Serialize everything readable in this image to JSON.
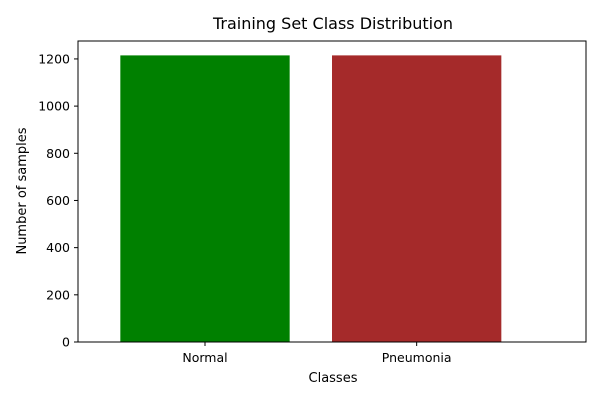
{
  "chart_data": {
    "type": "bar",
    "title": "Training Set Class Distribution",
    "xlabel": "Classes",
    "ylabel": "Number of samples",
    "categories": [
      "Normal",
      "Pneumonia"
    ],
    "values": [
      1215,
      1215
    ],
    "colors": [
      "#008000",
      "#a52a2a"
    ],
    "ylim": [
      0,
      1276
    ],
    "yticks": [
      0,
      200,
      400,
      600,
      800,
      1000,
      1200
    ],
    "grid": false,
    "legend": "none"
  }
}
